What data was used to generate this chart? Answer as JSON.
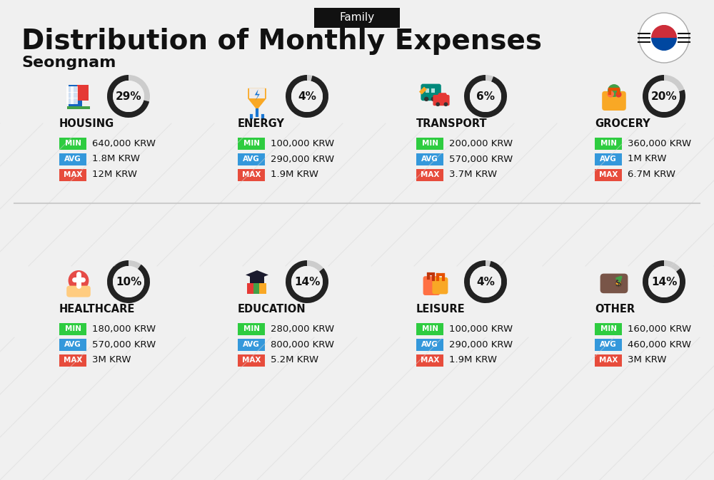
{
  "title": "Distribution of Monthly Expenses",
  "subtitle": "Family",
  "location": "Seongnam",
  "bg_color": "#f0f0f0",
  "categories": [
    {
      "name": "HOUSING",
      "pct": 29,
      "min": "640,000 KRW",
      "avg": "1.8M KRW",
      "max": "12M KRW",
      "icon": "housing",
      "row": 0,
      "col": 0
    },
    {
      "name": "ENERGY",
      "pct": 4,
      "min": "100,000 KRW",
      "avg": "290,000 KRW",
      "max": "1.9M KRW",
      "icon": "energy",
      "row": 0,
      "col": 1
    },
    {
      "name": "TRANSPORT",
      "pct": 6,
      "min": "200,000 KRW",
      "avg": "570,000 KRW",
      "max": "3.7M KRW",
      "icon": "transport",
      "row": 0,
      "col": 2
    },
    {
      "name": "GROCERY",
      "pct": 20,
      "min": "360,000 KRW",
      "avg": "1M KRW",
      "max": "6.7M KRW",
      "icon": "grocery",
      "row": 0,
      "col": 3
    },
    {
      "name": "HEALTHCARE",
      "pct": 10,
      "min": "180,000 KRW",
      "avg": "570,000 KRW",
      "max": "3M KRW",
      "icon": "healthcare",
      "row": 1,
      "col": 0
    },
    {
      "name": "EDUCATION",
      "pct": 14,
      "min": "280,000 KRW",
      "avg": "800,000 KRW",
      "max": "5.2M KRW",
      "icon": "education",
      "row": 1,
      "col": 1
    },
    {
      "name": "LEISURE",
      "pct": 4,
      "min": "100,000 KRW",
      "avg": "290,000 KRW",
      "max": "1.9M KRW",
      "icon": "leisure",
      "row": 1,
      "col": 2
    },
    {
      "name": "OTHER",
      "pct": 14,
      "min": "160,000 KRW",
      "avg": "460,000 KRW",
      "max": "3M KRW",
      "icon": "other",
      "row": 1,
      "col": 3
    }
  ],
  "color_min": "#2ecc40",
  "color_avg": "#3498db",
  "color_max": "#e74c3c",
  "label_color": "#ffffff",
  "text_color": "#111111",
  "donut_bg": "#cccccc",
  "donut_fg": "#111111"
}
